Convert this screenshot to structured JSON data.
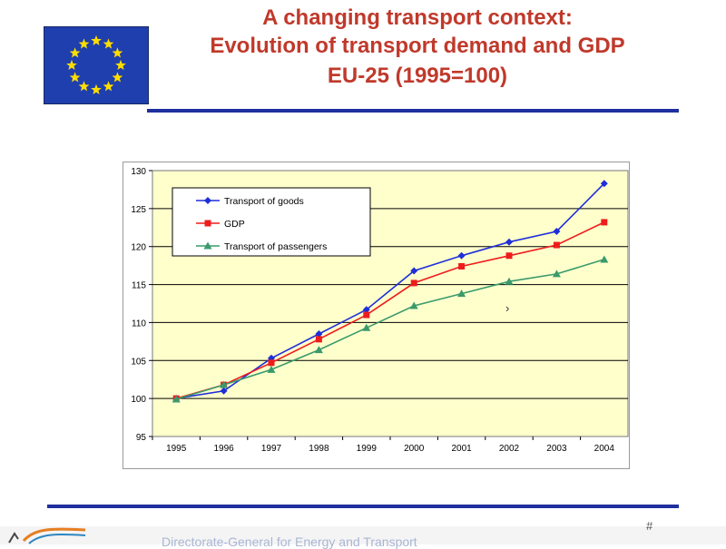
{
  "slide": {
    "title_lines": [
      "A changing transport context:",
      "Evolution of transport demand and GDP",
      "EU-25 (1995=100)"
    ],
    "footer": "Directorate-General for Energy and Transport",
    "page_number": "#",
    "colors": {
      "title": "#c0392b",
      "rule": "#1f2f9e",
      "flag_blue": "#1f3fae",
      "flag_star": "#ffdd00",
      "plot_bg": "#ffffcc"
    },
    "flag_icon": "eu-flag-icon"
  },
  "chart_data": {
    "type": "line",
    "title": "",
    "xlabel": "",
    "ylabel": "",
    "categories": [
      "1995",
      "1996",
      "1997",
      "1998",
      "1999",
      "2000",
      "2001",
      "2002",
      "2003",
      "2004"
    ],
    "yticks": [
      "95",
      "100",
      "105",
      "110",
      "115",
      "120",
      "125",
      "130"
    ],
    "ylim": [
      95,
      130
    ],
    "grid": true,
    "legend": "top-left",
    "series": [
      {
        "name": "Transport of goods",
        "color": "#1f2fd8",
        "marker": "diamond",
        "values": [
          100,
          101,
          105.3,
          108.5,
          111.7,
          116.8,
          118.8,
          120.6,
          122,
          128.3
        ]
      },
      {
        "name": "GDP",
        "color": "#ee1c1c",
        "marker": "square",
        "values": [
          100,
          101.8,
          104.7,
          107.8,
          111,
          115.2,
          117.4,
          118.8,
          120.2,
          123.2
        ]
      },
      {
        "name": "Transport of passengers",
        "color": "#3a9a6b",
        "marker": "triangle",
        "values": [
          99.9,
          101.8,
          103.8,
          106.4,
          109.3,
          112.2,
          113.8,
          115.4,
          116.4,
          118.3
        ]
      }
    ]
  }
}
